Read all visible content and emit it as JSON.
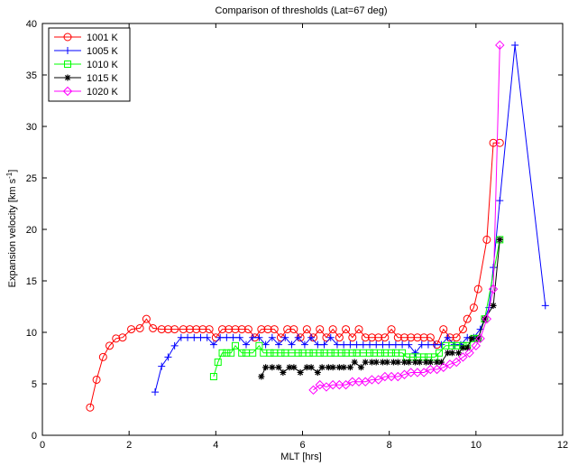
{
  "chart_data": {
    "type": "line",
    "title": "Comparison of thresholds (Lat=67 deg)",
    "xlabel": "MLT [hrs]",
    "ylabel": "Expansion velocity [km s",
    "ylabel_sup": "-1",
    "ylabel_close": "]",
    "xlim": [
      0,
      12
    ],
    "ylim": [
      0,
      40
    ],
    "xticks": [
      0,
      2,
      4,
      6,
      8,
      10,
      12
    ],
    "yticks": [
      0,
      5,
      10,
      15,
      20,
      25,
      30,
      35,
      40
    ],
    "grid": false,
    "legend_position": "top-left",
    "series": [
      {
        "name": "1001 K",
        "color": "#ff0000",
        "marker": "circle",
        "points": [
          [
            1.1,
            2.7
          ],
          [
            1.25,
            5.4
          ],
          [
            1.4,
            7.6
          ],
          [
            1.55,
            8.7
          ],
          [
            1.7,
            9.4
          ],
          [
            1.85,
            9.5
          ],
          [
            2.05,
            10.3
          ],
          [
            2.25,
            10.4
          ],
          [
            2.4,
            11.3
          ],
          [
            2.55,
            10.4
          ],
          [
            2.75,
            10.3
          ],
          [
            2.9,
            10.3
          ],
          [
            3.05,
            10.3
          ],
          [
            3.25,
            10.3
          ],
          [
            3.4,
            10.3
          ],
          [
            3.55,
            10.3
          ],
          [
            3.7,
            10.3
          ],
          [
            3.85,
            10.3
          ],
          [
            4.0,
            9.5
          ],
          [
            4.15,
            10.3
          ],
          [
            4.3,
            10.3
          ],
          [
            4.45,
            10.3
          ],
          [
            4.6,
            10.3
          ],
          [
            4.75,
            10.3
          ],
          [
            4.9,
            9.5
          ],
          [
            5.05,
            10.3
          ],
          [
            5.2,
            10.3
          ],
          [
            5.35,
            10.3
          ],
          [
            5.5,
            9.5
          ],
          [
            5.65,
            10.3
          ],
          [
            5.8,
            10.3
          ],
          [
            5.95,
            9.5
          ],
          [
            6.1,
            10.3
          ],
          [
            6.25,
            9.5
          ],
          [
            6.4,
            10.3
          ],
          [
            6.55,
            9.5
          ],
          [
            6.7,
            10.3
          ],
          [
            6.85,
            9.5
          ],
          [
            7.0,
            10.3
          ],
          [
            7.15,
            9.5
          ],
          [
            7.3,
            10.3
          ],
          [
            7.45,
            9.5
          ],
          [
            7.6,
            9.5
          ],
          [
            7.75,
            9.5
          ],
          [
            7.9,
            9.5
          ],
          [
            8.05,
            10.3
          ],
          [
            8.2,
            9.5
          ],
          [
            8.35,
            9.5
          ],
          [
            8.5,
            9.5
          ],
          [
            8.65,
            9.5
          ],
          [
            8.8,
            9.5
          ],
          [
            8.95,
            9.5
          ],
          [
            9.1,
            8.8
          ],
          [
            9.25,
            10.3
          ],
          [
            9.4,
            9.5
          ],
          [
            9.55,
            9.5
          ],
          [
            9.7,
            10.3
          ],
          [
            9.8,
            11.3
          ],
          [
            9.95,
            12.4
          ],
          [
            10.05,
            14.2
          ],
          [
            10.25,
            19.0
          ],
          [
            10.4,
            28.4
          ],
          [
            10.55,
            28.4
          ]
        ]
      },
      {
        "name": "1005 K",
        "color": "#0000ff",
        "marker": "plus",
        "points": [
          [
            2.6,
            4.2
          ],
          [
            2.75,
            6.7
          ],
          [
            2.9,
            7.6
          ],
          [
            3.05,
            8.7
          ],
          [
            3.2,
            9.5
          ],
          [
            3.35,
            9.5
          ],
          [
            3.5,
            9.5
          ],
          [
            3.65,
            9.5
          ],
          [
            3.8,
            9.5
          ],
          [
            3.95,
            8.8
          ],
          [
            4.1,
            9.5
          ],
          [
            4.25,
            9.5
          ],
          [
            4.4,
            9.5
          ],
          [
            4.55,
            9.5
          ],
          [
            4.7,
            8.8
          ],
          [
            4.85,
            9.5
          ],
          [
            5.0,
            9.5
          ],
          [
            5.15,
            8.8
          ],
          [
            5.3,
            9.5
          ],
          [
            5.45,
            8.8
          ],
          [
            5.6,
            9.5
          ],
          [
            5.75,
            8.8
          ],
          [
            5.9,
            9.5
          ],
          [
            6.05,
            8.8
          ],
          [
            6.2,
            9.5
          ],
          [
            6.35,
            8.8
          ],
          [
            6.5,
            8.8
          ],
          [
            6.65,
            9.5
          ],
          [
            6.8,
            8.8
          ],
          [
            6.95,
            8.8
          ],
          [
            7.1,
            8.8
          ],
          [
            7.25,
            8.8
          ],
          [
            7.4,
            8.8
          ],
          [
            7.55,
            8.8
          ],
          [
            7.7,
            8.8
          ],
          [
            7.85,
            8.8
          ],
          [
            8.0,
            8.8
          ],
          [
            8.15,
            8.8
          ],
          [
            8.3,
            8.8
          ],
          [
            8.45,
            8.8
          ],
          [
            8.6,
            8.0
          ],
          [
            8.75,
            8.8
          ],
          [
            8.9,
            8.8
          ],
          [
            9.05,
            8.8
          ],
          [
            9.2,
            8.8
          ],
          [
            9.35,
            9.5
          ],
          [
            9.5,
            8.8
          ],
          [
            9.65,
            8.8
          ],
          [
            9.8,
            9.5
          ],
          [
            9.95,
            9.5
          ],
          [
            10.1,
            10.3
          ],
          [
            10.2,
            11.3
          ],
          [
            10.3,
            12.4
          ],
          [
            10.4,
            16.3
          ],
          [
            10.55,
            22.8
          ],
          [
            10.9,
            37.9
          ],
          [
            11.6,
            12.6
          ]
        ]
      },
      {
        "name": "1010 K",
        "color": "#00ff00",
        "marker": "square",
        "points": [
          [
            3.95,
            5.7
          ],
          [
            4.05,
            7.1
          ],
          [
            4.15,
            8.0
          ],
          [
            4.25,
            8.0
          ],
          [
            4.35,
            8.0
          ],
          [
            4.45,
            8.7
          ],
          [
            4.6,
            8.0
          ],
          [
            4.7,
            8.0
          ],
          [
            4.85,
            8.0
          ],
          [
            5.0,
            8.7
          ],
          [
            5.1,
            8.0
          ],
          [
            5.25,
            8.0
          ],
          [
            5.35,
            8.0
          ],
          [
            5.5,
            8.0
          ],
          [
            5.6,
            8.0
          ],
          [
            5.75,
            8.0
          ],
          [
            5.9,
            8.0
          ],
          [
            6.0,
            8.0
          ],
          [
            6.15,
            8.0
          ],
          [
            6.25,
            8.0
          ],
          [
            6.4,
            8.0
          ],
          [
            6.5,
            8.0
          ],
          [
            6.65,
            8.0
          ],
          [
            6.75,
            8.0
          ],
          [
            6.9,
            8.0
          ],
          [
            7.0,
            8.0
          ],
          [
            7.15,
            8.0
          ],
          [
            7.25,
            8.0
          ],
          [
            7.4,
            8.0
          ],
          [
            7.55,
            8.0
          ],
          [
            7.65,
            8.0
          ],
          [
            7.8,
            8.0
          ],
          [
            7.9,
            8.0
          ],
          [
            8.05,
            8.0
          ],
          [
            8.15,
            8.0
          ],
          [
            8.3,
            8.0
          ],
          [
            8.4,
            7.6
          ],
          [
            8.55,
            7.6
          ],
          [
            8.65,
            7.6
          ],
          [
            8.8,
            7.6
          ],
          [
            8.9,
            7.6
          ],
          [
            9.05,
            7.6
          ],
          [
            9.15,
            8.0
          ],
          [
            9.3,
            8.7
          ],
          [
            9.45,
            8.7
          ],
          [
            9.55,
            8.7
          ],
          [
            9.7,
            8.7
          ],
          [
            9.8,
            8.7
          ],
          [
            9.95,
            9.4
          ],
          [
            10.05,
            9.4
          ],
          [
            10.2,
            11.3
          ],
          [
            10.55,
            19.0
          ]
        ]
      },
      {
        "name": "1015 K",
        "color": "#000000",
        "marker": "star",
        "points": [
          [
            5.05,
            5.7
          ],
          [
            5.15,
            6.6
          ],
          [
            5.3,
            6.6
          ],
          [
            5.45,
            6.6
          ],
          [
            5.55,
            6.1
          ],
          [
            5.7,
            6.6
          ],
          [
            5.8,
            6.6
          ],
          [
            5.95,
            6.1
          ],
          [
            6.1,
            6.6
          ],
          [
            6.2,
            6.6
          ],
          [
            6.35,
            6.1
          ],
          [
            6.45,
            6.6
          ],
          [
            6.6,
            6.6
          ],
          [
            6.7,
            6.6
          ],
          [
            6.85,
            6.6
          ],
          [
            6.95,
            6.6
          ],
          [
            7.1,
            6.6
          ],
          [
            7.2,
            7.1
          ],
          [
            7.35,
            6.6
          ],
          [
            7.45,
            7.1
          ],
          [
            7.6,
            7.1
          ],
          [
            7.7,
            7.1
          ],
          [
            7.85,
            7.1
          ],
          [
            7.95,
            7.1
          ],
          [
            8.1,
            7.1
          ],
          [
            8.2,
            7.1
          ],
          [
            8.35,
            7.1
          ],
          [
            8.45,
            7.1
          ],
          [
            8.6,
            7.1
          ],
          [
            8.7,
            7.1
          ],
          [
            8.85,
            7.1
          ],
          [
            8.95,
            7.1
          ],
          [
            9.1,
            7.1
          ],
          [
            9.2,
            7.1
          ],
          [
            9.35,
            8.0
          ],
          [
            9.45,
            8.0
          ],
          [
            9.6,
            8.0
          ],
          [
            9.7,
            8.5
          ],
          [
            9.8,
            8.5
          ],
          [
            9.9,
            9.4
          ],
          [
            10.05,
            9.4
          ],
          [
            10.2,
            11.3
          ],
          [
            10.4,
            12.6
          ],
          [
            10.55,
            19.0
          ]
        ]
      },
      {
        "name": "1020 K",
        "color": "#ff00ff",
        "marker": "diamond",
        "points": [
          [
            6.25,
            4.4
          ],
          [
            6.4,
            4.9
          ],
          [
            6.55,
            4.7
          ],
          [
            6.7,
            4.9
          ],
          [
            6.85,
            4.9
          ],
          [
            7.0,
            4.9
          ],
          [
            7.15,
            5.2
          ],
          [
            7.3,
            5.2
          ],
          [
            7.45,
            5.2
          ],
          [
            7.6,
            5.4
          ],
          [
            7.75,
            5.4
          ],
          [
            7.9,
            5.7
          ],
          [
            8.05,
            5.7
          ],
          [
            8.2,
            5.7
          ],
          [
            8.35,
            5.9
          ],
          [
            8.5,
            6.1
          ],
          [
            8.65,
            6.1
          ],
          [
            8.8,
            6.1
          ],
          [
            8.95,
            6.4
          ],
          [
            9.1,
            6.4
          ],
          [
            9.25,
            6.6
          ],
          [
            9.4,
            6.9
          ],
          [
            9.55,
            7.1
          ],
          [
            9.7,
            7.6
          ],
          [
            9.85,
            8.0
          ],
          [
            10.0,
            8.7
          ],
          [
            10.1,
            9.4
          ],
          [
            10.25,
            11.3
          ],
          [
            10.4,
            14.2
          ],
          [
            10.55,
            37.9
          ]
        ]
      }
    ]
  }
}
